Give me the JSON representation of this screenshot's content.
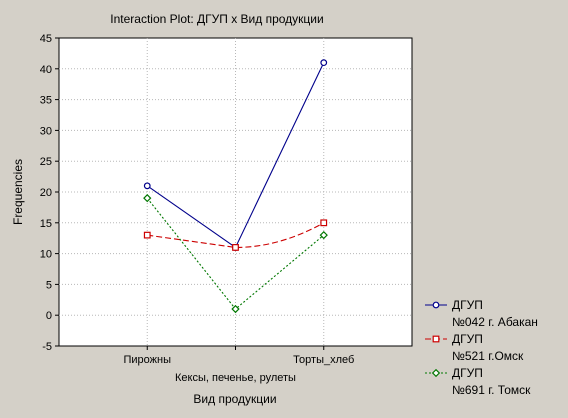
{
  "colors": {
    "background": "#d4d0c8",
    "plot_area": "#ffffff",
    "grid": "#b8b8b8",
    "axis": "#000000"
  },
  "chart_data": {
    "type": "line",
    "title": "Interaction Plot: ДГУП x Вид продукции",
    "xlabel": "Вид продукции",
    "ylabel": "Frequencies",
    "categories": [
      "Пирожны",
      "Кексы, печенье, рулеты",
      "Торты_хлеб"
    ],
    "ylim": [
      -5,
      45
    ],
    "yticks": [
      -5,
      0,
      5,
      10,
      15,
      20,
      25,
      30,
      35,
      40,
      45
    ],
    "grid": true,
    "legend_position": "right",
    "series": [
      {
        "name": "ДГУП",
        "subname": "№042 г. Абакан",
        "values": [
          21,
          11,
          41
        ],
        "color": "#00008b",
        "dash": "solid",
        "marker": "circle"
      },
      {
        "name": "ДГУП",
        "subname": "№521 г.Омск",
        "values": [
          13,
          11,
          15
        ],
        "color": "#cc0000",
        "dash": "dashed",
        "marker": "square"
      },
      {
        "name": "ДГУП",
        "subname": "№691 г. Томск",
        "values": [
          19,
          1,
          13
        ],
        "color": "#007700",
        "dash": "dotted",
        "marker": "diamond"
      }
    ]
  }
}
